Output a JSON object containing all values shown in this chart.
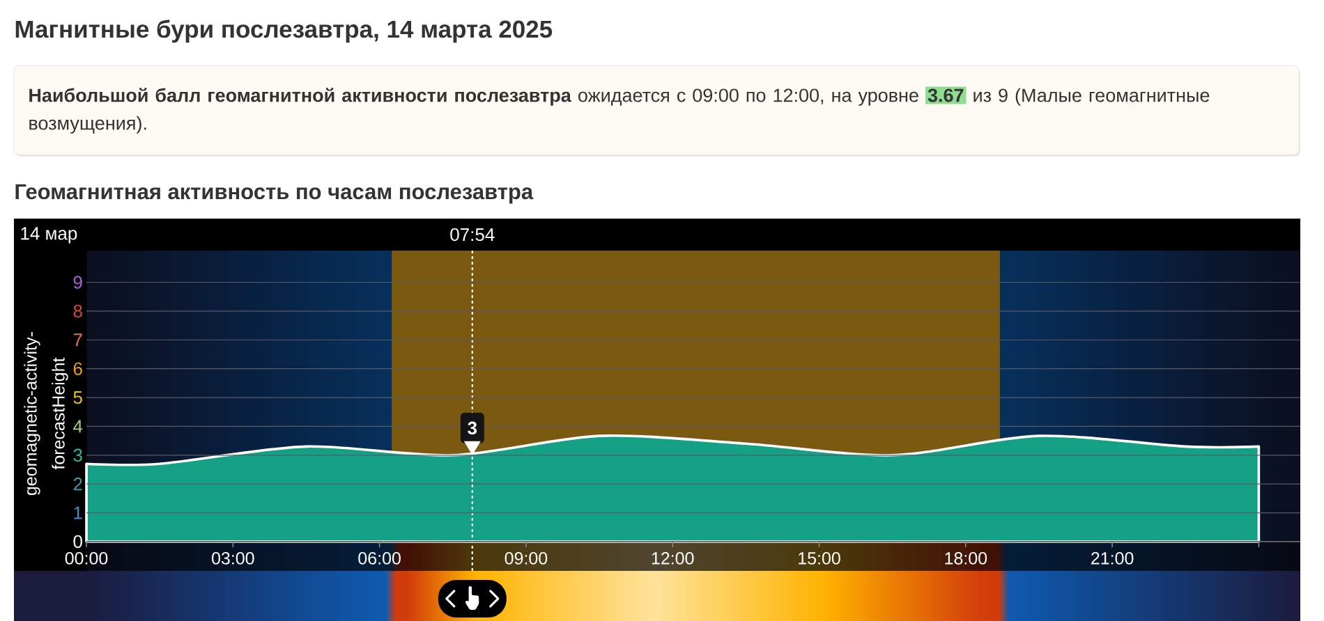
{
  "chart_data": {
    "type": "area",
    "title": "Магнитные бури послезавтра, 14 марта 2025",
    "subtitle": "Геомагнитная активность по часам послезавтра",
    "ylabel": "geomagnetic-activity-forecastHeight",
    "x": [
      0,
      1.5,
      4.5,
      7.5,
      10.5,
      13.5,
      16.5,
      19.5,
      22.5,
      24
    ],
    "values": [
      2.7,
      2.7,
      3.3,
      3.0,
      3.67,
      3.4,
      3.0,
      3.67,
      3.3,
      3.3
    ],
    "color": "#13a084",
    "xlim": [
      0,
      24.85
    ],
    "xticks": [
      {
        "value": 0,
        "label": "00:00"
      },
      {
        "value": 3,
        "label": "03:00"
      },
      {
        "value": 6,
        "label": "06:00"
      },
      {
        "value": 9,
        "label": "09:00"
      },
      {
        "value": 12,
        "label": "12:00"
      },
      {
        "value": 15,
        "label": "15:00"
      },
      {
        "value": 18,
        "label": "18:00"
      },
      {
        "value": 21,
        "label": "21:00"
      },
      {
        "value": 24,
        "label": null
      }
    ],
    "ylim": [
      0,
      10.1
    ],
    "yticks": [
      0,
      1,
      2,
      3,
      4,
      5,
      6,
      7,
      8,
      9
    ],
    "grid": "y",
    "bands": [
      {
        "axis": "x",
        "from": 6.25,
        "to": 18.7,
        "color": "#7a5a10"
      }
    ],
    "ref_lines": [
      {
        "axis": "x",
        "value": 7.9,
        "color": "#ffffff",
        "line_style": "dotted"
      }
    ],
    "annotations": [
      "**Наибольшой балл геомагнитной активности послезавтра** ожидается с 09:00 по 12:00, на уровне",
      "3.67",
      "из 9 (Малые геомагнитные возмущения).",
      "14 мар",
      "07:54",
      {
        "text": "3",
        "x": 7.9,
        "y": 3.0
      }
    ]
  }
}
